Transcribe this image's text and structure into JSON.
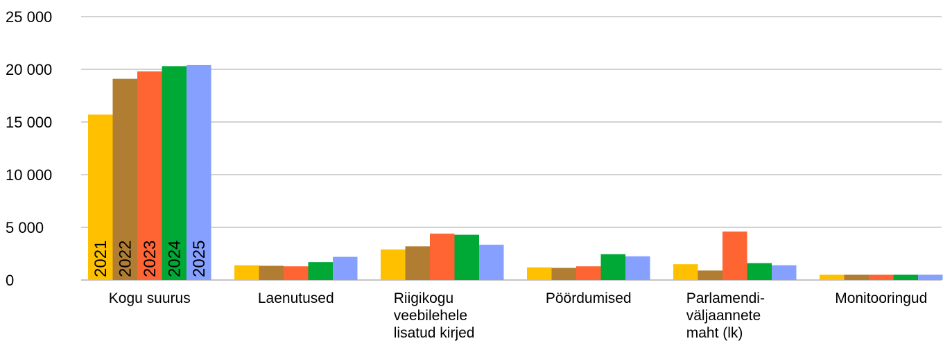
{
  "chart_data": {
    "type": "bar",
    "categories": [
      [
        "Kogu suurus"
      ],
      [
        "Laenutused"
      ],
      [
        "Riigikogu",
        "veebilehele",
        "lisatud kirjed"
      ],
      [
        "Pöördumised"
      ],
      [
        "Parlamendi-",
        "väljaannete",
        "maht (lk)"
      ],
      [
        "Monitooringud"
      ]
    ],
    "series": [
      {
        "name": "2021",
        "color": "#FFC000",
        "values": [
          15700,
          1400,
          2900,
          1200,
          1500,
          500
        ]
      },
      {
        "name": "2022",
        "color": "#B07D33",
        "values": [
          19100,
          1350,
          3200,
          1150,
          900,
          500
        ]
      },
      {
        "name": "2023",
        "color": "#FF6433",
        "values": [
          19800,
          1300,
          4400,
          1300,
          4600,
          500
        ]
      },
      {
        "name": "2024",
        "color": "#00A836",
        "values": [
          20300,
          1700,
          4300,
          2450,
          1600,
          500
        ]
      },
      {
        "name": "2025",
        "color": "#86A0FF",
        "values": [
          20400,
          2200,
          3350,
          2250,
          1400,
          500
        ]
      }
    ],
    "y_ticks": [
      "0",
      "5 000",
      "10 000",
      "15 000",
      "20 000",
      "25 000"
    ],
    "ylim": [
      0,
      25000
    ],
    "grid": true,
    "legend": "year labels inside first group's bars"
  }
}
